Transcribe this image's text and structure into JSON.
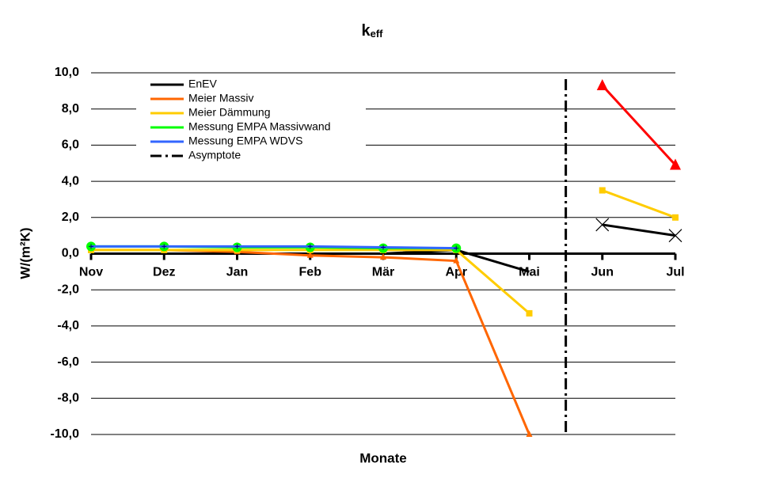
{
  "chart_data": {
    "type": "line",
    "title": {
      "main": "k",
      "sub": "eff"
    },
    "x_label": "Monate",
    "y_label": "W/(m²K)",
    "categories": [
      "Nov",
      "Dez",
      "Jan",
      "Feb",
      "Mär",
      "Apr",
      "Mai",
      "Jun",
      "Jul"
    ],
    "ylim": [
      -10,
      10
    ],
    "yticks": [
      {
        "value": 10,
        "label": "10,0"
      },
      {
        "value": 8,
        "label": "8,0"
      },
      {
        "value": 6,
        "label": "6,0"
      },
      {
        "value": 4,
        "label": "4,0"
      },
      {
        "value": 2,
        "label": "2,0"
      },
      {
        "value": 0,
        "label": "0,0"
      },
      {
        "value": -2,
        "label": "-2,0"
      },
      {
        "value": -4,
        "label": "-4,0"
      },
      {
        "value": -6,
        "label": "-6,0"
      },
      {
        "value": -8,
        "label": "-8,0"
      },
      {
        "value": -10,
        "label": "-10,0"
      }
    ],
    "grid": true,
    "series": [
      {
        "name": "EnEV",
        "color": "#000000",
        "marker": "x",
        "values": [
          0.0,
          0.0,
          0.0,
          0.0,
          0.0,
          0.2,
          -1.0,
          1.6,
          1.0
        ]
      },
      {
        "name": "Meier Massiv",
        "color": "#ff6600",
        "color_after_asymptote": "#ff0000",
        "marker": "triangle",
        "values": [
          0.2,
          0.2,
          0.1,
          -0.1,
          -0.2,
          -0.4,
          -10.0,
          9.3,
          4.9
        ]
      },
      {
        "name": "Meier Dämmung",
        "color": "#ffcc00",
        "marker": "square",
        "values": [
          0.2,
          0.2,
          0.2,
          0.2,
          0.2,
          0.2,
          -3.3,
          3.5,
          2.0
        ]
      },
      {
        "name": "Messung EMPA Massivwand",
        "color": "#00ff00",
        "marker": "circle",
        "values": [
          0.4,
          0.4,
          0.35,
          0.35,
          0.3,
          0.3,
          null,
          null,
          null
        ]
      },
      {
        "name": "Messung EMPA WDVS",
        "color": "#3366ff",
        "marker": "plus",
        "values": [
          0.4,
          0.4,
          0.4,
          0.4,
          0.35,
          0.3,
          null,
          null,
          null
        ]
      }
    ],
    "asymptote": {
      "name": "Asymptote",
      "x": 6.5,
      "color": "#000000"
    }
  }
}
